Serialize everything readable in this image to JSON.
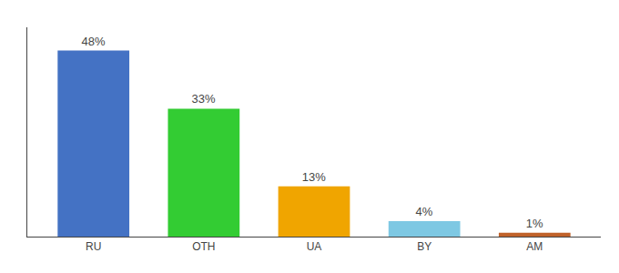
{
  "chart_data": {
    "type": "bar",
    "categories": [
      "RU",
      "OTH",
      "UA",
      "BY",
      "AM"
    ],
    "values": [
      48,
      33,
      13,
      4,
      1
    ],
    "value_labels": [
      "48%",
      "33%",
      "13%",
      "4%",
      "1%"
    ],
    "colors": [
      "#4472c4",
      "#33cc33",
      "#f0a500",
      "#7ec8e3",
      "#c0622a"
    ],
    "ylim": [
      0,
      54
    ],
    "grid": false,
    "data_labels": true,
    "tick_labels": "x"
  }
}
